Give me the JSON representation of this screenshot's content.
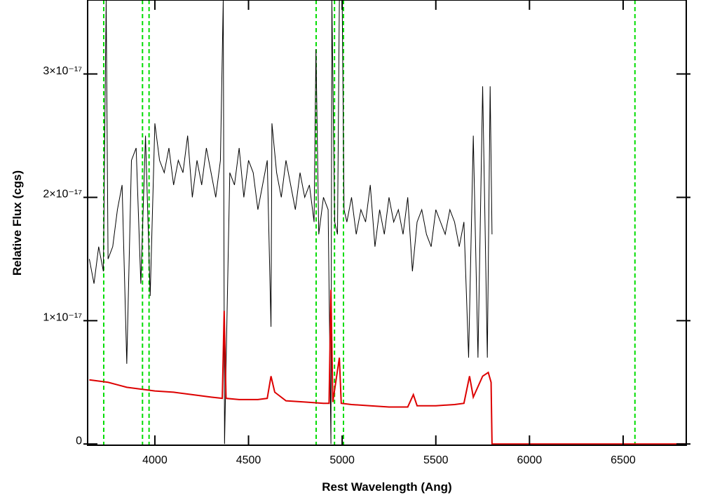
{
  "chart_data": {
    "type": "line",
    "xlabel": "Rest Wavelength (Ang)",
    "ylabel": "Relative Flux (cgs)",
    "xlim": [
      3641,
      6837
    ],
    "ylim": [
      -1e-19,
      3.6e-17
    ],
    "xticks": [
      4000,
      4500,
      5000,
      5500,
      6000,
      6500
    ],
    "yticks": [
      0,
      {
        "value": 1e-17,
        "label": "1×10⁻¹⁷"
      },
      {
        "value": 2e-17,
        "label": "2×10⁻¹⁷"
      },
      {
        "value": 3e-17,
        "label": "3×10⁻¹⁷"
      }
    ],
    "series": [
      {
        "color": "#000000",
        "x": [
          3650,
          3675,
          3700,
          3725,
          3740,
          3750,
          3775,
          3800,
          3825,
          3850,
          3875,
          3900,
          3925,
          3950,
          3975,
          4000,
          4025,
          4050,
          4075,
          4100,
          4125,
          4150,
          4175,
          4200,
          4225,
          4250,
          4275,
          4300,
          4325,
          4350,
          4365,
          4372,
          4400,
          4425,
          4450,
          4475,
          4500,
          4525,
          4550,
          4575,
          4600,
          4620,
          4625,
          4650,
          4675,
          4700,
          4725,
          4750,
          4775,
          4800,
          4825,
          4850,
          4860,
          4875,
          4900,
          4925,
          4940,
          4945,
          4960,
          4975,
          4985,
          5000,
          5010,
          5025,
          5050,
          5075,
          5100,
          5125,
          5150,
          5175,
          5200,
          5225,
          5250,
          5275,
          5300,
          5325,
          5350,
          5375,
          5400,
          5425,
          5450,
          5475,
          5500,
          5525,
          5550,
          5575,
          5600,
          5625,
          5650,
          5675,
          5700,
          5725,
          5750,
          5775,
          5790,
          5800
        ],
        "values": [
          1.5e-17,
          1.3e-17,
          1.6e-17,
          1.4e-17,
          3.6e-17,
          1.5e-17,
          1.6e-17,
          1.9e-17,
          2.1e-17,
          6.5e-18,
          2.3e-17,
          2.4e-17,
          1.3e-17,
          2.5e-17,
          1.2e-17,
          2.6e-17,
          2.3e-17,
          2.2e-17,
          2.4e-17,
          2.1e-17,
          2.3e-17,
          2.2e-17,
          2.5e-17,
          2e-17,
          2.3e-17,
          2.1e-17,
          2.4e-17,
          2.2e-17,
          2e-17,
          2.3e-17,
          3.6e-17,
          0,
          2.2e-17,
          2.1e-17,
          2.4e-17,
          2e-17,
          2.3e-17,
          2.2e-17,
          1.9e-17,
          2.1e-17,
          2.3e-17,
          9.5e-18,
          2.6e-17,
          2.2e-17,
          2e-17,
          2.3e-17,
          2.1e-17,
          1.9e-17,
          2.2e-17,
          2e-17,
          2.1e-17,
          1.8e-17,
          3.2e-17,
          1.7e-17,
          2e-17,
          1.9e-17,
          0,
          3.6e-17,
          1.8e-17,
          1.7e-17,
          3.6e-17,
          3.6e-17,
          1.9e-17,
          1.8e-17,
          2e-17,
          1.7e-17,
          1.9e-17,
          1.8e-17,
          2.1e-17,
          1.6e-17,
          1.9e-17,
          1.7e-17,
          2e-17,
          1.8e-17,
          1.9e-17,
          1.7e-17,
          2e-17,
          1.4e-17,
          1.8e-17,
          1.9e-17,
          1.7e-17,
          1.6e-17,
          1.9e-17,
          1.8e-17,
          1.7e-17,
          1.9e-17,
          1.8e-17,
          1.6e-17,
          1.8e-17,
          7e-18,
          2.5e-17,
          7e-18,
          2.9e-17,
          7e-18,
          2.9e-17,
          1.7e-17
        ]
      },
      {
        "color": "#dd0000",
        "x": [
          3650,
          3700,
          3750,
          3800,
          3850,
          3900,
          3950,
          4000,
          4100,
          4200,
          4300,
          4360,
          4370,
          4380,
          4450,
          4550,
          4600,
          4620,
          4640,
          4700,
          4800,
          4900,
          4930,
          4940,
          4950,
          4985,
          4995,
          5050,
          5150,
          5250,
          5350,
          5380,
          5400,
          5500,
          5600,
          5650,
          5680,
          5700,
          5750,
          5780,
          5795,
          5800,
          6837
        ],
        "values": [
          5.2e-18,
          5.1e-18,
          5e-18,
          4.8e-18,
          4.6e-18,
          4.5e-18,
          4.4e-18,
          4.3e-18,
          4.2e-18,
          4e-18,
          3.8e-18,
          3.7e-18,
          1.08e-17,
          3.7e-18,
          3.6e-18,
          3.6e-18,
          3.7e-18,
          5.5e-18,
          4.2e-18,
          3.5e-18,
          3.4e-18,
          3.3e-18,
          3.3e-18,
          1.25e-17,
          3.4e-18,
          7e-18,
          3.3e-18,
          3.2e-18,
          3.1e-18,
          3e-18,
          3e-18,
          4e-18,
          3.1e-18,
          3.1e-18,
          3.2e-18,
          3.3e-18,
          5.5e-18,
          3.8e-18,
          5.5e-18,
          5.8e-18,
          5e-18,
          0,
          0
        ]
      }
    ],
    "vlines": {
      "color": "#00dd00",
      "x": [
        3727,
        3934,
        3969,
        4861,
        4959,
        5007,
        6563
      ]
    }
  }
}
